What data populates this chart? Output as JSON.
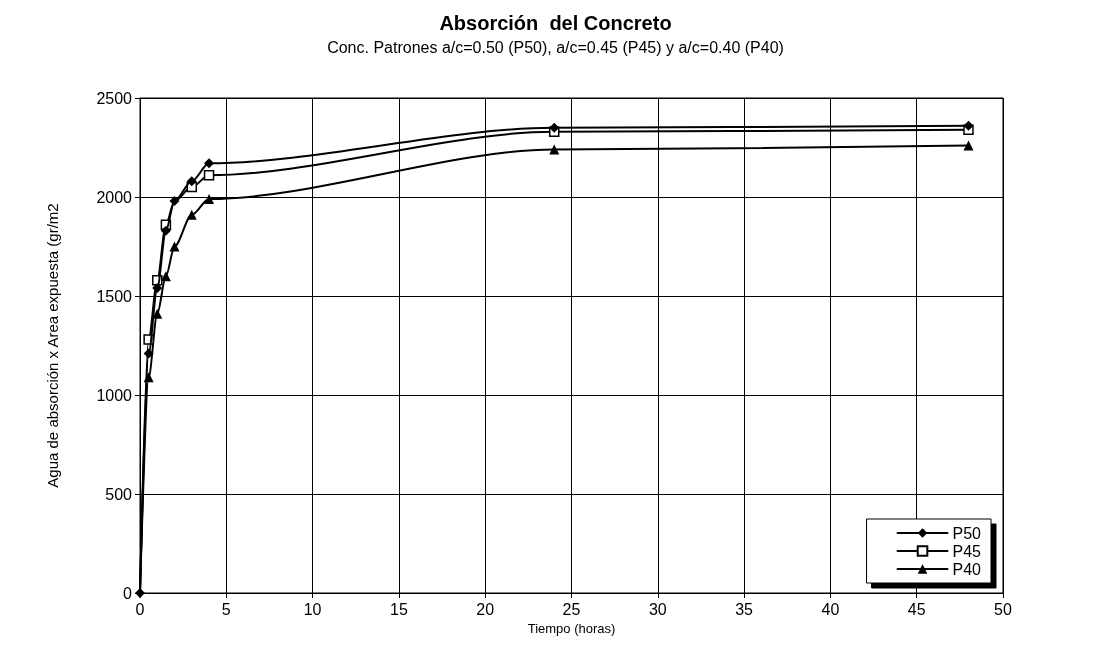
{
  "chart_data": {
    "type": "line",
    "title": "Absorción  del Concreto",
    "subtitle": "Conc. Patrones a/c=0.50 (P50), a/c=0.45 (P45) y a/c=0.40 (P40)",
    "xlabel": "Tiempo (horas)",
    "ylabel": "Agua de absorción x Area expuesta (gr/m2",
    "x": [
      0,
      0.5,
      1,
      1.5,
      2,
      3,
      4,
      24,
      48
    ],
    "series": [
      {
        "name": "P50",
        "color": "#000000",
        "marker": "diamond",
        "values": [
          0,
          1210,
          1540,
          1830,
          1980,
          2080,
          2170,
          2350,
          2360
        ]
      },
      {
        "name": "P45",
        "color": "#000000",
        "marker": "square",
        "values": [
          0,
          1280,
          1580,
          1860,
          1980,
          2050,
          2110,
          2330,
          2340
        ]
      },
      {
        "name": "P40",
        "color": "#000000",
        "marker": "triangle",
        "values": [
          0,
          1090,
          1410,
          1600,
          1750,
          1910,
          1990,
          2240,
          2260
        ]
      }
    ],
    "xlim": [
      0,
      50
    ],
    "xticks": [
      0,
      5,
      10,
      15,
      20,
      25,
      30,
      35,
      40,
      45,
      50
    ],
    "ylim": [
      0,
      2500
    ],
    "yticks": [
      0,
      500,
      1000,
      1500,
      2000,
      2500
    ],
    "grid": true,
    "legend": "bottom right",
    "line_style": "solid"
  }
}
